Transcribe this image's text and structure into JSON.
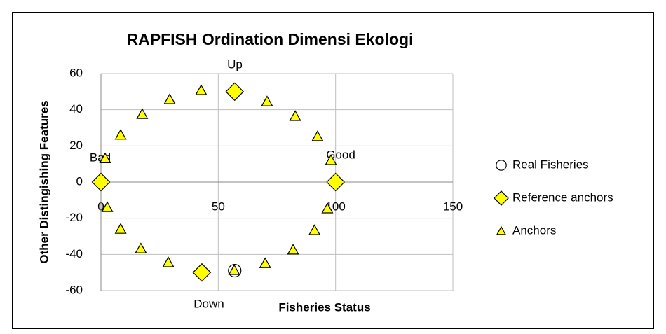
{
  "chart_data": {
    "type": "scatter",
    "title": "RAPFISH Ordination Dimensi Ekologi",
    "x_label": "Fisheries Status",
    "y_label": "Other Distingishing Features",
    "xlim": [
      0,
      150
    ],
    "ylim": [
      -60,
      60
    ],
    "xticks": [
      0,
      50,
      100,
      150
    ],
    "yticks": [
      -60,
      -40,
      -20,
      0,
      20,
      40,
      60
    ],
    "grid": true,
    "legend": "right",
    "annotations": [
      "Up",
      "Down",
      "Bad",
      "Good"
    ],
    "series": [
      {
        "name": "Real Fisheries",
        "marker": "circle",
        "color": "none",
        "x": [
          57
        ],
        "y": [
          -49
        ]
      },
      {
        "name": "Reference anchors",
        "marker": "diamond",
        "color": "#ffff00",
        "x": [
          0,
          100,
          57,
          43
        ],
        "y": [
          0,
          0,
          50,
          -50
        ]
      },
      {
        "name": "Anchors",
        "marker": "triangle",
        "color": "#ffff00",
        "x": [
          1.8,
          8.4,
          17.6,
          29.3,
          42.7,
          70.8,
          82.8,
          92.3,
          98,
          2.7,
          8.4,
          17,
          28.7,
          56.8,
          70,
          81.9,
          91,
          96.5
        ],
        "y": [
          13,
          26,
          37.5,
          45.7,
          50.7,
          44.5,
          36.4,
          25.2,
          12,
          -14,
          -26,
          -36.8,
          -44.5,
          -48.8,
          -45,
          -37.5,
          -26.7,
          -14.7
        ]
      }
    ]
  }
}
